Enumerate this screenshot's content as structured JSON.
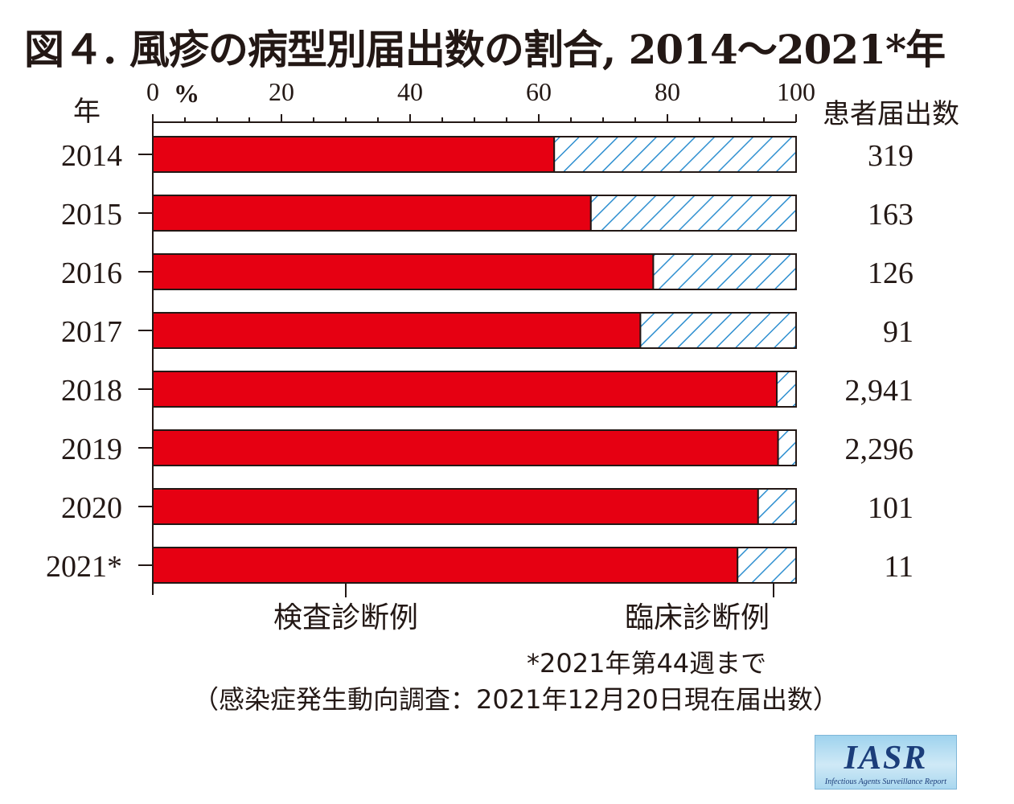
{
  "title": "図４. 風疹の病型別届出数の割合, 2014〜2021*年",
  "axis": {
    "y_header": "年",
    "right_header": "患者届出数",
    "ticks": [
      "0",
      "20",
      "40",
      "60",
      "80",
      "100"
    ],
    "unit": "%"
  },
  "chart_data": {
    "type": "bar",
    "orientation": "horizontal",
    "stacked": true,
    "title": "図４. 風疹の病型別届出数の割合, 2014〜2021*年",
    "xlabel": "%",
    "ylabel": "年",
    "xlim": [
      0,
      100
    ],
    "categories": [
      "2014",
      "2015",
      "2016",
      "2017",
      "2018",
      "2019",
      "2020",
      "2021*"
    ],
    "series": [
      {
        "name": "検査診断例",
        "color": "#e60012",
        "values": [
          62.4,
          68.1,
          77.8,
          75.8,
          97.0,
          97.2,
          94.1,
          90.9
        ]
      },
      {
        "name": "臨床診断例",
        "color": "#2e8fd0",
        "pattern": "hatch",
        "values": [
          37.6,
          31.9,
          22.2,
          24.2,
          3.0,
          2.8,
          5.9,
          9.1
        ]
      }
    ],
    "counts": [
      "319",
      "163",
      "126",
      "91",
      "2,941",
      "2,296",
      "101",
      "11"
    ],
    "grid": false
  },
  "footnotes": {
    "asterisk": "*2021年第44週まで",
    "source": "（感染症発生動向調査：2021年12月20日現在届出数）"
  },
  "logo": {
    "main": "IASR",
    "sub": "Infectious Agents Surveillance Report"
  }
}
